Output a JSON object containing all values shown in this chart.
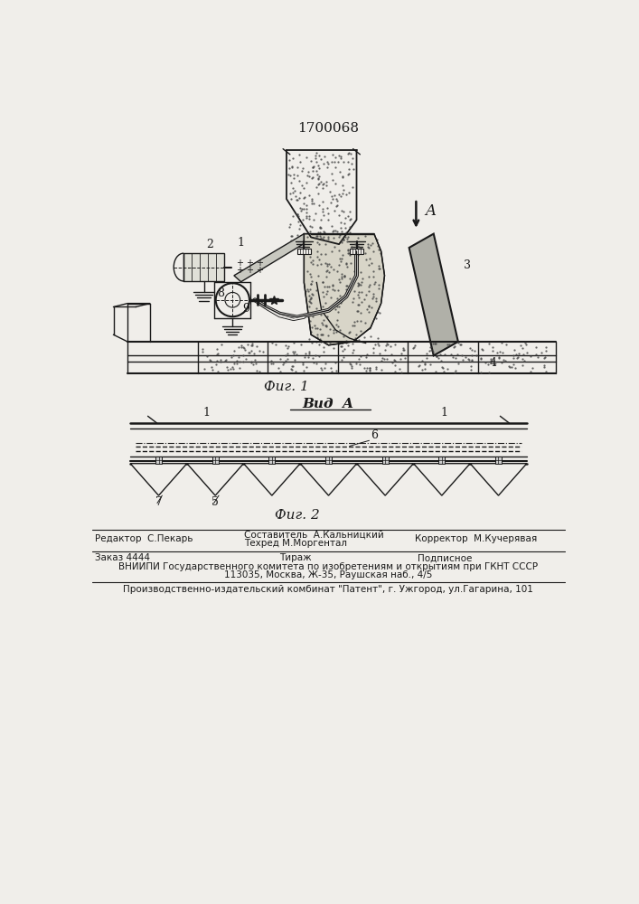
{
  "patent_number": "1700068",
  "fig1_label": "Фиг. 1",
  "fig2_label": "Фиг. 2",
  "vid_a_label": "Вид  A",
  "arrow_a_label": "A",
  "background_color": "#f0eeea",
  "line_color": "#1a1a1a",
  "editor_line": "Редактор  С.Пекарь",
  "sostavitel_line": "Составитель  А.Кальницкий",
  "tekhred_line": "Техред М.Моргентал",
  "korrektor_line": "Корректор  М.Кучерявая",
  "zakaz_line": "Заказ 4444",
  "tirazh_line": "Тираж",
  "podpisnoe_line": "Подписное",
  "vniip_line1": "ВНИИПИ Государственного комитета по изобретениям и открытиям при ГКНТ СССР",
  "vniip_line2": "113035, Москва, Ж-35, Раушская наб., 4/5",
  "proizv_line": "Производственно-издательский комбинат \"Патент\", г. Ужгород, ул.Гагарина, 101"
}
